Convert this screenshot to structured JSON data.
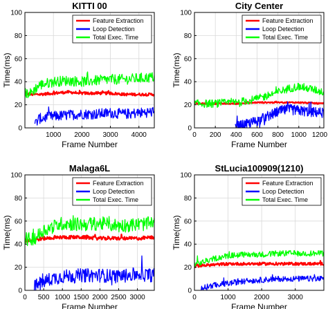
{
  "colors": {
    "feature": "#ff0000",
    "loop": "#0000ff",
    "total": "#00ff00",
    "grid": "#d9d9d9",
    "axis": "#000000"
  },
  "chart_data": [
    {
      "type": "line",
      "title": "KITTI 00",
      "xlabel": "Frame Number",
      "ylabel": "Time(ms)",
      "xlim": [
        0,
        4540
      ],
      "ylim": [
        0,
        100
      ],
      "xticks": [
        1000,
        2000,
        3000,
        4000
      ],
      "yticks": [
        0,
        20,
        40,
        60,
        80,
        100
      ],
      "grid": true,
      "legend": "top-right",
      "series": [
        {
          "name": "Feature Extraction",
          "color_key": "feature",
          "x": [
            0,
            200,
            500,
            1000,
            1500,
            2000,
            2500,
            3000,
            3500,
            4000,
            4540
          ],
          "y": [
            30,
            29,
            29,
            30,
            31,
            30,
            30,
            30,
            29,
            29,
            29
          ],
          "noise": 1.2
        },
        {
          "name": "Loop Detection",
          "color_key": "loop",
          "x": [
            350,
            500,
            1000,
            1500,
            2000,
            2500,
            3000,
            3500,
            4000,
            4540
          ],
          "y": [
            3,
            8,
            10,
            11,
            12,
            12,
            13,
            12,
            13,
            14
          ],
          "noise": 4.5
        },
        {
          "name": "Total Exec. Time",
          "color_key": "total",
          "x": [
            0,
            200,
            500,
            1000,
            1500,
            2000,
            2500,
            3000,
            3500,
            4000,
            4540
          ],
          "y": [
            30,
            30,
            37,
            40,
            41,
            40,
            41,
            42,
            42,
            43,
            44
          ],
          "noise": 4.5
        }
      ]
    },
    {
      "type": "line",
      "title": "City Center",
      "xlabel": "Frame Number",
      "ylabel": "Time(ms)",
      "xlim": [
        0,
        1240
      ],
      "ylim": [
        0,
        100
      ],
      "xticks": [
        0,
        200,
        400,
        600,
        800,
        1000,
        1200
      ],
      "yticks": [
        0,
        20,
        40,
        60,
        80,
        100
      ],
      "grid": true,
      "legend": "top-right",
      "series": [
        {
          "name": "Feature Extraction",
          "color_key": "feature",
          "x": [
            0,
            200,
            400,
            600,
            800,
            1000,
            1240
          ],
          "y": [
            21,
            21,
            21,
            22,
            22,
            22,
            21
          ],
          "noise": 0.6
        },
        {
          "name": "Loop Detection",
          "color_key": "loop",
          "x": [
            390,
            500,
            600,
            700,
            800,
            900,
            1000,
            1100,
            1240
          ],
          "y": [
            1,
            3,
            6,
            10,
            14,
            16,
            15,
            14,
            13
          ],
          "noise": 4.5
        },
        {
          "name": "Total Exec. Time",
          "color_key": "total",
          "x": [
            0,
            200,
            400,
            600,
            700,
            800,
            900,
            1000,
            1100,
            1240
          ],
          "y": [
            21,
            21,
            22,
            25,
            28,
            31,
            34,
            36,
            34,
            31
          ],
          "noise": 3.5
        }
      ]
    },
    {
      "type": "line",
      "title": "Malaga6L",
      "xlabel": "Frame Number",
      "ylabel": "Time(ms)",
      "xlim": [
        0,
        3450
      ],
      "ylim": [
        0,
        100
      ],
      "xticks": [
        0,
        500,
        1000,
        1500,
        2000,
        2500,
        3000
      ],
      "yticks": [
        0,
        20,
        40,
        60,
        80,
        100
      ],
      "grid": true,
      "legend": "top-right",
      "series": [
        {
          "name": "Feature Extraction",
          "color_key": "feature",
          "x": [
            0,
            300,
            500,
            1000,
            1500,
            2000,
            2500,
            3000,
            3450
          ],
          "y": [
            43,
            44,
            45,
            46,
            46,
            45,
            45,
            45,
            46
          ],
          "noise": 1.5
        },
        {
          "name": "Loop Detection",
          "color_key": "loop",
          "x": [
            250,
            400,
            700,
            1000,
            1500,
            2000,
            2500,
            3000,
            3450
          ],
          "y": [
            3,
            6,
            10,
            12,
            13,
            13,
            12,
            14,
            13
          ],
          "noise": 6
        },
        {
          "name": "Total Exec. Time",
          "color_key": "total",
          "x": [
            0,
            300,
            500,
            1000,
            1500,
            2000,
            2500,
            3000,
            3450
          ],
          "y": [
            43,
            46,
            52,
            58,
            57,
            58,
            56,
            57,
            58
          ],
          "noise": 6
        }
      ]
    },
    {
      "type": "line",
      "title": "StLucia100909(1210)",
      "xlabel": "Frame Number",
      "ylabel": "Time(ms)",
      "xlim": [
        0,
        3850
      ],
      "ylim": [
        0,
        100
      ],
      "xticks": [
        0,
        1000,
        2000,
        3000
      ],
      "yticks": [
        0,
        20,
        40,
        60,
        80,
        100
      ],
      "grid": true,
      "legend": "top-right",
      "series": [
        {
          "name": "Feature Extraction",
          "color_key": "feature",
          "x": [
            0,
            500,
            1000,
            1500,
            2000,
            2500,
            3000,
            3500,
            3850
          ],
          "y": [
            21,
            22,
            23,
            23,
            23,
            23,
            23,
            23,
            23
          ],
          "noise": 1.2
        },
        {
          "name": "Loop Detection",
          "color_key": "loop",
          "x": [
            200,
            500,
            1000,
            1500,
            2000,
            2500,
            3000,
            3500,
            3850
          ],
          "y": [
            2,
            4,
            6,
            8,
            9,
            10,
            10,
            10,
            10
          ],
          "noise": 2.5
        },
        {
          "name": "Total Exec. Time",
          "color_key": "total",
          "x": [
            0,
            500,
            1000,
            1500,
            2000,
            2500,
            3000,
            3500,
            3850
          ],
          "y": [
            22,
            27,
            30,
            31,
            31,
            32,
            32,
            32,
            32
          ],
          "noise": 2.5
        }
      ]
    }
  ]
}
